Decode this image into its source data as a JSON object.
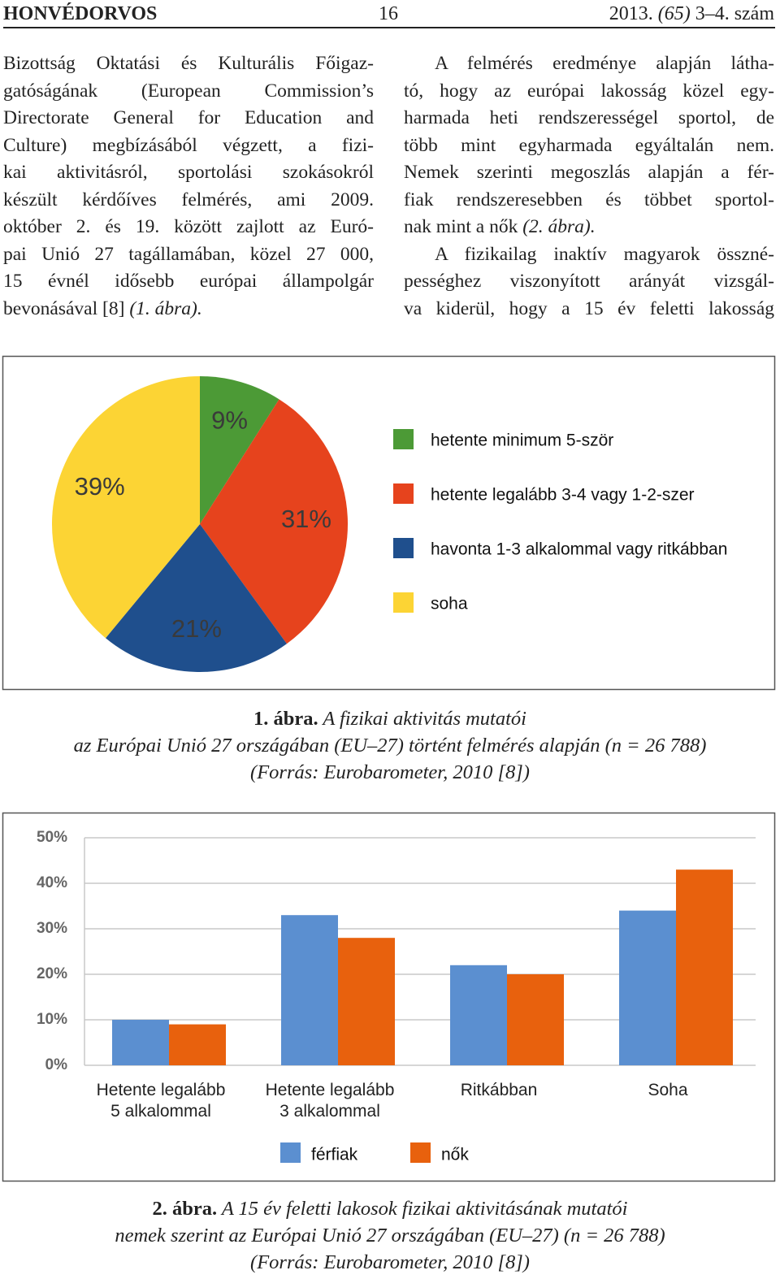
{
  "header": {
    "journal": "HONVÉDORVOS",
    "page": "16",
    "issue": [
      "2013. ",
      {
        "italic": "(65)"
      },
      " 3–4. szám"
    ]
  },
  "columns": [
    {
      "paragraphs": [
        {
          "lines": [
            "Bizottság Oktatási és Kulturális Főigaz-",
            "gatóságának (European Commission’s",
            "Directorate General for Education and",
            "Culture) megbízásából végzett, a fizi-",
            "kai aktivitásról, sportolási szokásokról",
            "készült kérdőíves felmérés, ami 2009.",
            "október 2. és 19. között zajlott az Euró-",
            "pai Unió 27 tagállamában, közel 27 000,",
            "15 évnél idősebb európai állampolgár",
            [
              "bevonásával [8] ",
              {
                "italic": "(1. ábra)."
              }
            ]
          ]
        }
      ]
    },
    {
      "paragraphs": [
        {
          "lines": [
            "A felmérés eredménye alapján látha-",
            "tó, hogy az európai lakosság közel egy-",
            "harmada heti rendszerességel sportol, de",
            "több mint egyharmada egyáltalán nem.",
            "Nemek szerinti megoszlás alapján a fér-",
            "fiak rendszeresebben és többet sportol-",
            [
              "nak mint a nők ",
              {
                "italic": "(2. ábra)."
              }
            ]
          ]
        },
        {
          "lines": [
            "A fizikailag inaktív magyarok összné-",
            "pességhez viszonyított arányát vizsgál-",
            "va kiderül, hogy a 15 év feletti lakosság"
          ]
        }
      ]
    }
  ],
  "chart_data": [
    {
      "type": "pie",
      "categories": [
        "hetente minimum 5-ször",
        "hetente legalább 3-4 vagy 1-2-szer",
        "havonta 1-3 alkalommal vagy ritkábban",
        "soha"
      ],
      "values": [
        9,
        31,
        21,
        39
      ],
      "value_labels": [
        "9%",
        "31%",
        "21%",
        "39%"
      ],
      "colors": [
        "#4c9a36",
        "#e6431d",
        "#1f4f8d",
        "#fcd434"
      ]
    },
    {
      "type": "bar",
      "categories": [
        "Hetente legalább\n5 alkalommal",
        "Hetente legalább\n3 alkalommal",
        "Ritkábban",
        "Soha"
      ],
      "series": [
        {
          "name": "férfiak",
          "color": "#5b8fd0",
          "values": [
            10,
            33,
            22,
            34
          ]
        },
        {
          "name": "nők",
          "color": "#e8610d",
          "values": [
            9,
            28,
            20,
            43
          ]
        }
      ],
      "ylim": [
        0,
        50
      ],
      "yticks": [
        {
          "value": 0,
          "label": "0%"
        },
        {
          "value": 10,
          "label": "10%"
        },
        {
          "value": 20,
          "label": "20%"
        },
        {
          "value": 30,
          "label": "30%"
        },
        {
          "value": 40,
          "label": "40%"
        },
        {
          "value": 50,
          "label": "50%"
        }
      ],
      "grid": true
    }
  ],
  "captions": [
    {
      "label": "1. ábra.",
      "lines": [
        "A fizikai aktivitás mutatói",
        "az Európai Unió 27 országában (EU–27) történt felmérés alapján (n = 26 788)",
        "(Forrás: Eurobarometer, 2010 [8])"
      ]
    },
    {
      "label": "2. ábra.",
      "lines": [
        "A 15 év feletti lakosok fizikai aktivitásának mutatói",
        "nemek szerint az Európai Unió 27 országában (EU–27) (n = 26 788)",
        "(Forrás: Eurobarometer, 2010 [8])"
      ]
    }
  ]
}
